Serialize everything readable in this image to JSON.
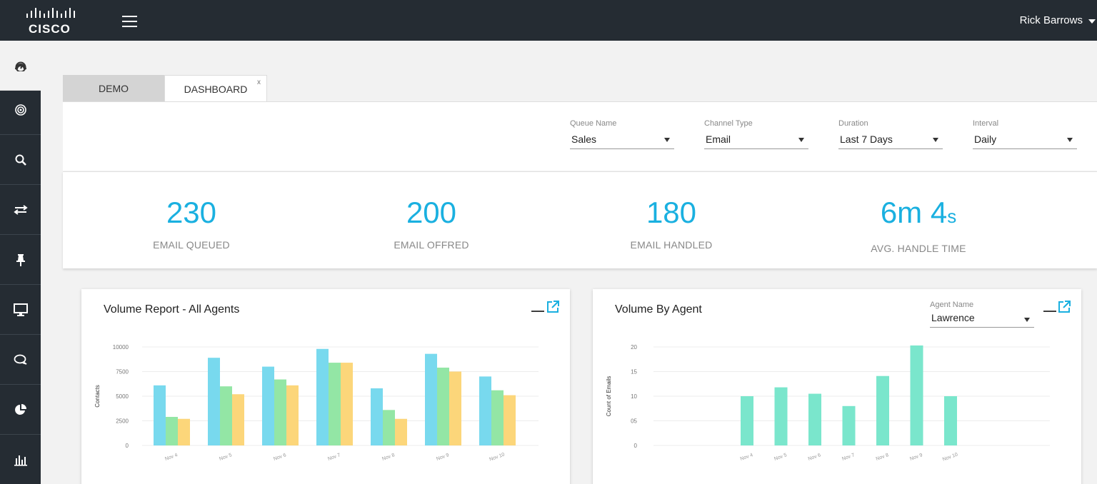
{
  "header": {
    "logo_text": "CISCO",
    "user_name": "Rick Barrows"
  },
  "sidebar": {
    "items": [
      {
        "icon": "dashboard-icon",
        "active": true
      },
      {
        "icon": "target-icon"
      },
      {
        "icon": "search-icon"
      },
      {
        "icon": "transfer-icon"
      },
      {
        "icon": "pin-icon"
      },
      {
        "icon": "monitor-icon"
      },
      {
        "icon": "chat-icon"
      },
      {
        "icon": "pie-chart-icon"
      },
      {
        "icon": "bar-chart-icon"
      }
    ]
  },
  "tabs": [
    {
      "label": "DEMO"
    },
    {
      "label": "DASHBOARD",
      "close": "x"
    }
  ],
  "filters": [
    {
      "label": "Queue Name",
      "value": "Sales"
    },
    {
      "label": "Channel Type",
      "value": "Email"
    },
    {
      "label": "Duration",
      "value": "Last 7 Days"
    },
    {
      "label": "Interval",
      "value": "Daily"
    }
  ],
  "kpis": [
    {
      "value": "230",
      "label": "EMAIL QUEUED"
    },
    {
      "value": "200",
      "label": "EMAIL OFFRED"
    },
    {
      "value": "180",
      "label": "EMAIL HANDLED"
    },
    {
      "value_main": "6m 4",
      "value_unit": "s",
      "label": "AVG. HANDLE TIME"
    }
  ],
  "volume_report": {
    "title": "Volume Report -  All Agents",
    "minimize": "—"
  },
  "volume_by_agent": {
    "title": "Volume By Agent",
    "agent_label": "Agent Name",
    "agent_value": "Lawrence",
    "minimize": "—"
  },
  "colors": {
    "accent": "#1ab0e0",
    "topbar": "#252c33",
    "series_blue": "#78d9ee",
    "series_green": "#93e6a5",
    "series_yellow": "#fcd67a",
    "agent_bar": "#7ae6cc"
  },
  "chart_data": [
    {
      "type": "bar",
      "title": "Volume Report -  All Agents",
      "ylabel": "Contacts",
      "xlabel": "",
      "categories": [
        "Nov 4",
        "Nov 5",
        "Nov 6",
        "Nov 7",
        "Nov 8",
        "Nov 9",
        "Nov 10"
      ],
      "yticks": [
        "0",
        "2500",
        "5000",
        "7500",
        "10000"
      ],
      "ylim": [
        0,
        10000
      ],
      "grid": true,
      "series": [
        {
          "values": [
            6100,
            8900,
            8000,
            9800,
            5800,
            9300,
            7000
          ],
          "color": "#78d9ee"
        },
        {
          "values": [
            2900,
            6000,
            6700,
            8400,
            3600,
            7900,
            5600
          ],
          "color": "#93e6a5"
        },
        {
          "values": [
            2700,
            5200,
            6100,
            8400,
            2700,
            7500,
            5100
          ],
          "color": "#fcd67a"
        }
      ]
    },
    {
      "type": "bar",
      "title": "Volume By Agent",
      "ylabel": "Count of Emails",
      "xlabel": "",
      "categories": [
        "Nov 4",
        "Nov 5",
        "Nov 6",
        "Nov 7",
        "Nov 8",
        "Nov 9",
        "Nov 10"
      ],
      "yticks": [
        "0",
        "05",
        "10",
        "15",
        "20"
      ],
      "ylim": [
        0,
        20
      ],
      "grid": true,
      "series": [
        {
          "values": [
            10,
            11.8,
            10.5,
            8,
            14.1,
            20.3,
            10
          ],
          "color": "#7ae6cc"
        }
      ]
    }
  ]
}
